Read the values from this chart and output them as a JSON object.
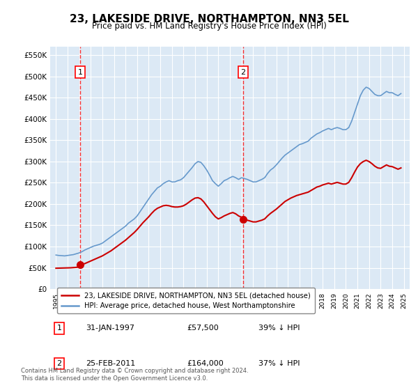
{
  "title": "23, LAKESIDE DRIVE, NORTHAMPTON, NN3 5EL",
  "subtitle": "Price paid vs. HM Land Registry's House Price Index (HPI)",
  "background_color": "#dce9f5",
  "plot_bg_color": "#dce9f5",
  "red_line_color": "#cc0000",
  "blue_line_color": "#6699cc",
  "ylim": [
    0,
    570000
  ],
  "yticks": [
    0,
    50000,
    100000,
    150000,
    200000,
    250000,
    300000,
    350000,
    400000,
    450000,
    500000,
    550000
  ],
  "ytick_labels": [
    "£0",
    "£50K",
    "£100K",
    "£150K",
    "£200K",
    "£250K",
    "£300K",
    "£350K",
    "£400K",
    "£450K",
    "£500K",
    "£550K"
  ],
  "xlim_start": 1994.5,
  "xlim_end": 2025.5,
  "xticks": [
    1995,
    1996,
    1997,
    1998,
    1999,
    2000,
    2001,
    2002,
    2003,
    2004,
    2005,
    2006,
    2007,
    2008,
    2009,
    2010,
    2011,
    2012,
    2013,
    2014,
    2015,
    2016,
    2017,
    2018,
    2019,
    2020,
    2021,
    2022,
    2023,
    2024,
    2025
  ],
  "sale1_x": 1997.08,
  "sale1_y": 57500,
  "sale1_label": "1",
  "sale2_x": 2011.15,
  "sale2_y": 164000,
  "sale2_label": "2",
  "legend_red": "23, LAKESIDE DRIVE, NORTHAMPTON, NN3 5EL (detached house)",
  "legend_blue": "HPI: Average price, detached house, West Northamptonshire",
  "table_data": [
    {
      "num": "1",
      "date": "31-JAN-1997",
      "price": "£57,500",
      "hpi": "39% ↓ HPI"
    },
    {
      "num": "2",
      "date": "25-FEB-2011",
      "price": "£164,000",
      "hpi": "37% ↓ HPI"
    }
  ],
  "footer": "Contains HM Land Registry data © Crown copyright and database right 2024.\nThis data is licensed under the Open Government Licence v3.0.",
  "hpi_data_x": [
    1995.0,
    1995.25,
    1995.5,
    1995.75,
    1996.0,
    1996.25,
    1996.5,
    1996.75,
    1997.0,
    1997.25,
    1997.5,
    1997.75,
    1998.0,
    1998.25,
    1998.5,
    1998.75,
    1999.0,
    1999.25,
    1999.5,
    1999.75,
    2000.0,
    2000.25,
    2000.5,
    2000.75,
    2001.0,
    2001.25,
    2001.5,
    2001.75,
    2002.0,
    2002.25,
    2002.5,
    2002.75,
    2003.0,
    2003.25,
    2003.5,
    2003.75,
    2004.0,
    2004.25,
    2004.5,
    2004.75,
    2005.0,
    2005.25,
    2005.5,
    2005.75,
    2006.0,
    2006.25,
    2006.5,
    2006.75,
    2007.0,
    2007.25,
    2007.5,
    2007.75,
    2008.0,
    2008.25,
    2008.5,
    2008.75,
    2009.0,
    2009.25,
    2009.5,
    2009.75,
    2010.0,
    2010.25,
    2010.5,
    2010.75,
    2011.0,
    2011.25,
    2011.5,
    2011.75,
    2012.0,
    2012.25,
    2012.5,
    2012.75,
    2013.0,
    2013.25,
    2013.5,
    2013.75,
    2014.0,
    2014.25,
    2014.5,
    2014.75,
    2015.0,
    2015.25,
    2015.5,
    2015.75,
    2016.0,
    2016.25,
    2016.5,
    2016.75,
    2017.0,
    2017.25,
    2017.5,
    2017.75,
    2018.0,
    2018.25,
    2018.5,
    2018.75,
    2019.0,
    2019.25,
    2019.5,
    2019.75,
    2020.0,
    2020.25,
    2020.5,
    2020.75,
    2021.0,
    2021.25,
    2021.5,
    2021.75,
    2022.0,
    2022.25,
    2022.5,
    2022.75,
    2023.0,
    2023.25,
    2023.5,
    2023.75,
    2024.0,
    2024.25,
    2024.5,
    2024.75
  ],
  "hpi_data_y": [
    80000,
    79000,
    78500,
    78000,
    79000,
    80000,
    81000,
    83000,
    85000,
    88000,
    92000,
    95000,
    98000,
    101000,
    103000,
    105000,
    108000,
    113000,
    118000,
    123000,
    128000,
    133000,
    138000,
    143000,
    148000,
    155000,
    160000,
    165000,
    172000,
    182000,
    192000,
    202000,
    212000,
    222000,
    230000,
    238000,
    242000,
    248000,
    252000,
    255000,
    252000,
    252000,
    255000,
    257000,
    262000,
    270000,
    278000,
    286000,
    295000,
    300000,
    298000,
    290000,
    280000,
    268000,
    255000,
    248000,
    242000,
    248000,
    255000,
    258000,
    262000,
    265000,
    262000,
    258000,
    262000,
    260000,
    258000,
    255000,
    252000,
    252000,
    255000,
    258000,
    262000,
    272000,
    280000,
    285000,
    292000,
    300000,
    308000,
    315000,
    320000,
    325000,
    330000,
    335000,
    340000,
    342000,
    345000,
    348000,
    355000,
    360000,
    365000,
    368000,
    372000,
    375000,
    378000,
    375000,
    378000,
    380000,
    378000,
    375000,
    375000,
    380000,
    395000,
    415000,
    435000,
    455000,
    468000,
    475000,
    472000,
    465000,
    458000,
    455000,
    455000,
    460000,
    465000,
    462000,
    462000,
    458000,
    455000,
    460000
  ],
  "red_data_x": [
    1995.0,
    1995.25,
    1995.5,
    1995.75,
    1996.0,
    1996.25,
    1996.5,
    1996.75,
    1997.0,
    1997.25,
    1997.5,
    1997.75,
    1998.0,
    1998.25,
    1998.5,
    1998.75,
    1999.0,
    1999.25,
    1999.5,
    1999.75,
    2000.0,
    2000.25,
    2000.5,
    2000.75,
    2001.0,
    2001.25,
    2001.5,
    2001.75,
    2002.0,
    2002.25,
    2002.5,
    2002.75,
    2003.0,
    2003.25,
    2003.5,
    2003.75,
    2004.0,
    2004.25,
    2004.5,
    2004.75,
    2005.0,
    2005.25,
    2005.5,
    2005.75,
    2006.0,
    2006.25,
    2006.5,
    2006.75,
    2007.0,
    2007.25,
    2007.5,
    2007.75,
    2008.0,
    2008.25,
    2008.5,
    2008.75,
    2009.0,
    2009.25,
    2009.5,
    2009.75,
    2010.0,
    2010.25,
    2010.5,
    2010.75,
    2011.0,
    2011.25,
    2011.5,
    2011.75,
    2012.0,
    2012.25,
    2012.5,
    2012.75,
    2013.0,
    2013.25,
    2013.5,
    2013.75,
    2014.0,
    2014.25,
    2014.5,
    2014.75,
    2015.0,
    2015.25,
    2015.5,
    2015.75,
    2016.0,
    2016.25,
    2016.5,
    2016.75,
    2017.0,
    2017.25,
    2017.5,
    2017.75,
    2018.0,
    2018.25,
    2018.5,
    2018.75,
    2019.0,
    2019.25,
    2019.5,
    2019.75,
    2020.0,
    2020.25,
    2020.5,
    2020.75,
    2021.0,
    2021.25,
    2021.5,
    2021.75,
    2022.0,
    2022.25,
    2022.5,
    2022.75,
    2023.0,
    2023.25,
    2023.5,
    2023.75,
    2024.0,
    2024.25,
    2024.5,
    2024.75
  ],
  "red_data_y": [
    49000,
    49200,
    49400,
    49600,
    49800,
    50000,
    50500,
    51000,
    52000,
    57500,
    60000,
    63000,
    66000,
    69000,
    72000,
    75000,
    78000,
    82000,
    86000,
    90000,
    95000,
    100000,
    105000,
    110000,
    115000,
    121000,
    127000,
    133000,
    140000,
    148000,
    156000,
    163000,
    170000,
    178000,
    185000,
    190000,
    193000,
    196000,
    197000,
    196000,
    194000,
    193000,
    193000,
    194000,
    196000,
    200000,
    205000,
    210000,
    214000,
    215000,
    212000,
    205000,
    196000,
    187000,
    178000,
    170000,
    165000,
    168000,
    172000,
    175000,
    178000,
    180000,
    177000,
    172000,
    169000,
    164000,
    162000,
    160000,
    158000,
    158000,
    160000,
    162000,
    165000,
    172000,
    178000,
    183000,
    188000,
    194000,
    200000,
    206000,
    210000,
    214000,
    217000,
    220000,
    222000,
    224000,
    226000,
    228000,
    232000,
    236000,
    240000,
    242000,
    245000,
    247000,
    249000,
    247000,
    249000,
    251000,
    249000,
    247000,
    247000,
    251000,
    262000,
    275000,
    287000,
    295000,
    300000,
    303000,
    300000,
    295000,
    289000,
    285000,
    284000,
    288000,
    292000,
    289000,
    288000,
    285000,
    282000,
    285000
  ]
}
